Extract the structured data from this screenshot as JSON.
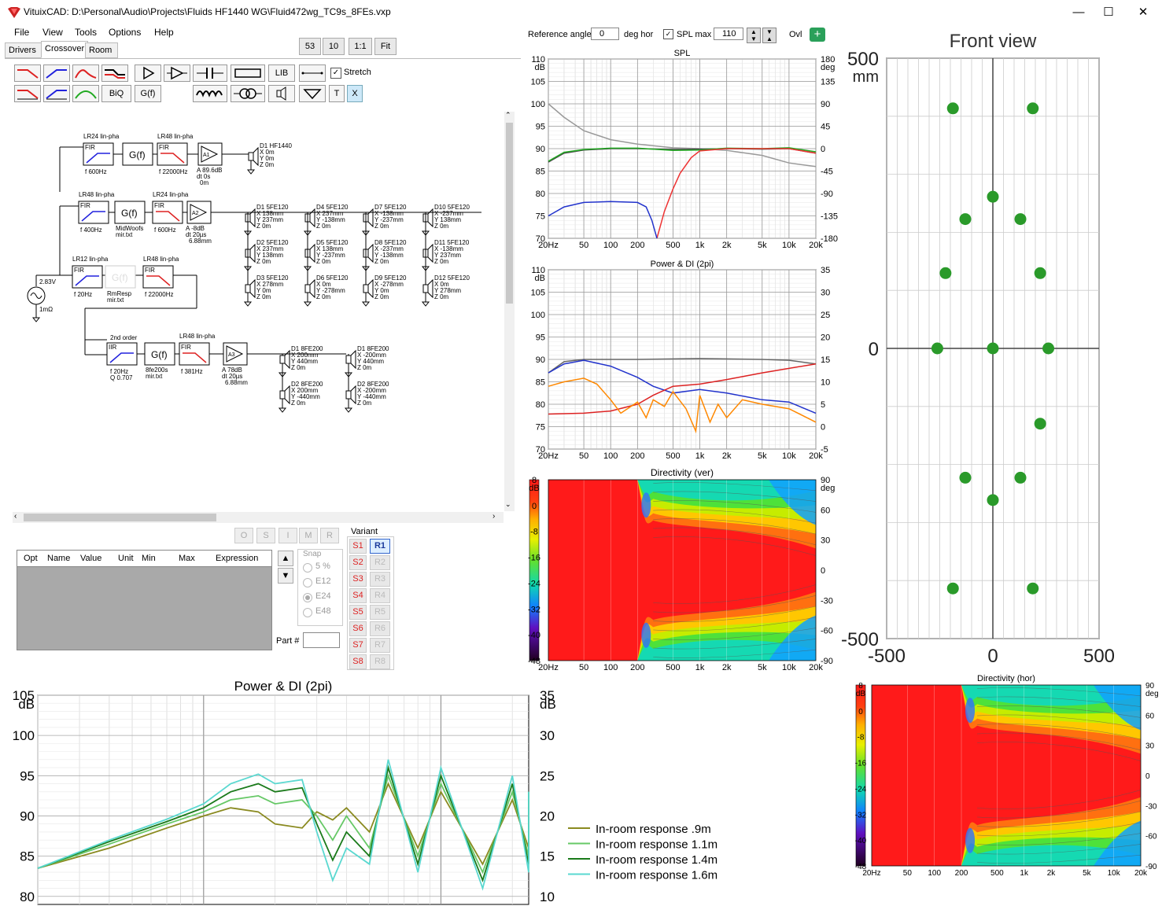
{
  "window": {
    "title": "VituixCAD: D:\\Personal\\Audio\\Projects\\Fluids HF1440 WG\\Fluid472wg_TC9s_8FEs.vxp"
  },
  "menu": [
    "File",
    "View",
    "Tools",
    "Options",
    "Help"
  ],
  "tabs": [
    "Drivers",
    "Crossover",
    "Room"
  ],
  "zoom_buttons": [
    "53",
    "10",
    "1:1",
    "Fit"
  ],
  "toolbar": {
    "lib": "LIB",
    "biq": "BiQ",
    "gf": "G(f)",
    "t": "T",
    "x": "X",
    "stretch": "Stretch"
  },
  "topbar": {
    "ref_label": "Reference angle",
    "ref_value": "0",
    "ref_unit": "deg hor",
    "splmax_label": "SPL max",
    "splmax_value": "110",
    "ovl": "Ovl"
  },
  "schematic": {
    "blocks": [
      {
        "head": "LR24 lin-pha",
        "sub": "f  600Hz"
      },
      {
        "head": "LR48 lin-pha",
        "sub": "f  22000Hz"
      },
      {
        "head": "LR48 lin-pha",
        "sub": "f  400Hz"
      },
      {
        "head": "LR24 lin-pha",
        "sub": "f  600Hz"
      },
      {
        "head": "LR12 lin-pha",
        "sub": "f  20Hz"
      },
      {
        "head": "LR48 lin-pha",
        "sub": "f  22000Hz"
      },
      {
        "head": "2nd order",
        "sub": "f  20Hz"
      },
      {
        "head": "LR48 lin-pha",
        "sub": "f  381Hz"
      }
    ],
    "gf_files": [
      "MidWoofs mir.txt",
      "RmResp mir.txt",
      "8fe200s mir.txt"
    ],
    "amps": [
      {
        "name": "A1",
        "info": [
          "A  89.6dB",
          "dt 0s",
          "0m"
        ]
      },
      {
        "name": "A2",
        "info": [
          "A  -8dB",
          "dt 20µs",
          "6.88mm"
        ]
      },
      {
        "name": "A3",
        "info": [
          "A  78dB",
          "dt 20µs",
          "6.88mm"
        ]
      }
    ],
    "q_label": "Q 0.707",
    "source_v": "2.83V",
    "source_r": "1mΩ",
    "drivers": [
      {
        "n": "D1 HF1440",
        "x": "X 0m",
        "y": "Y 0m",
        "z": "Z 0m"
      },
      {
        "n": "D1 5FE120",
        "x": "X 138mm",
        "y": "Y 237mm",
        "z": "Z 0m"
      },
      {
        "n": "D4 5FE120",
        "x": "X 237mm",
        "y": "Y -138mm",
        "z": "Z 0m"
      },
      {
        "n": "D7 5FE120",
        "x": "X -138mm",
        "y": "Y -237mm",
        "z": "Z 0m"
      },
      {
        "n": "D10 5FE120",
        "x": "X -237mm",
        "y": "Y 138mm",
        "z": "Z 0m"
      },
      {
        "n": "D2 5FE120",
        "x": "X 237mm",
        "y": "Y 138mm",
        "z": "Z 0m"
      },
      {
        "n": "D5 5FE120",
        "x": "X 138mm",
        "y": "Y -237mm",
        "z": "Z 0m"
      },
      {
        "n": "D8 5FE120",
        "x": "X -237mm",
        "y": "Y -138mm",
        "z": "Z 0m"
      },
      {
        "n": "D11 5FE120",
        "x": "X -138mm",
        "y": "Y 237mm",
        "z": "Z 0m"
      },
      {
        "n": "D3 5FE120",
        "x": "X 278mm",
        "y": "Y 0m",
        "z": "Z 0m"
      },
      {
        "n": "D6 5FE120",
        "x": "X 0m",
        "y": "Y -278mm",
        "z": "Z 0m"
      },
      {
        "n": "D9 5FE120",
        "x": "X -278mm",
        "y": "Y 0m",
        "z": "Z 0m"
      },
      {
        "n": "D12 5FE120",
        "x": "X 0m",
        "y": "Y 278mm",
        "z": "Z 0m"
      },
      {
        "n": "D1 8FE200",
        "x": "X 200mm",
        "y": "Y 440mm",
        "z": "Z 0m"
      },
      {
        "n": "D1 8FE200",
        "x": "X -200mm",
        "y": "Y 440mm",
        "z": "Z 0m"
      },
      {
        "n": "D2 8FE200",
        "x": "X 200mm",
        "y": "Y -440mm",
        "z": "Z 0m"
      },
      {
        "n": "D2 8FE200",
        "x": "X -200mm",
        "y": "Y -440mm",
        "z": "Z 0m"
      }
    ],
    "fir": "FIR",
    "iir": "IIR",
    "gf": "G(f)"
  },
  "optimizer": {
    "headers": [
      "Opt",
      "Name",
      "Value",
      "Unit",
      "Min",
      "Max",
      "Expression"
    ],
    "buttons": [
      "O",
      "S",
      "I",
      "M",
      "R"
    ],
    "snap_label": "Snap",
    "snap_options": [
      "5 %",
      "E12",
      "E24",
      "E48"
    ],
    "snap_selected": "E24",
    "part_label": "Part #",
    "variant_label": "Variant",
    "s_buttons": [
      "S1",
      "S2",
      "S3",
      "S4",
      "S5",
      "S6",
      "S7",
      "S8"
    ],
    "r_buttons": [
      "R1",
      "R2",
      "R3",
      "R4",
      "R5",
      "R6",
      "R7",
      "R8"
    ]
  },
  "chart_data": [
    {
      "type": "line",
      "title": "SPL",
      "y_unit": "dB",
      "ylim": [
        70,
        110
      ],
      "yticks": [
        "110",
        "105",
        "100",
        "95",
        "90",
        "85",
        "80",
        "75",
        "70"
      ],
      "y2_unit": "deg",
      "y2ticks": [
        "180",
        "135",
        "90",
        "45",
        "0",
        "-45",
        "-90",
        "-135",
        "-180"
      ],
      "xticks": [
        "20Hz",
        "50",
        "100",
        "200",
        "500",
        "1k",
        "2k",
        "5k",
        "10k",
        "20k"
      ],
      "x_scale": "log",
      "series": [
        {
          "color": "#999999",
          "x": [
            20,
            30,
            50,
            100,
            200,
            500,
            1000,
            2000,
            5000,
            10000,
            20000
          ],
          "y": [
            100,
            97,
            94,
            92,
            91,
            90.2,
            90,
            89.6,
            88.5,
            86.8,
            86
          ]
        },
        {
          "color": "#444444",
          "x": [
            20,
            30,
            50,
            100,
            200,
            500,
            1000,
            2000,
            5000,
            10000,
            20000
          ],
          "y": [
            87,
            89,
            89.7,
            90,
            90,
            89.8,
            89.9,
            90,
            89.9,
            90,
            89
          ]
        },
        {
          "color": "#22aa22",
          "x": [
            20,
            30,
            50,
            100,
            200,
            500,
            1000,
            2000,
            5000,
            10000,
            20000
          ],
          "y": [
            87.2,
            89.2,
            89.8,
            90.1,
            90.1,
            89.6,
            89.7,
            90.1,
            90,
            90.2,
            89.3
          ]
        },
        {
          "color": "#ee3333",
          "x": [
            330,
            400,
            500,
            600,
            800,
            1000,
            2000,
            5000,
            10000,
            20000
          ],
          "y": [
            70,
            76,
            81,
            84.5,
            88,
            89.5,
            90,
            90,
            90,
            89
          ]
        },
        {
          "color": "#2233cc",
          "x": [
            20,
            30,
            50,
            100,
            200,
            250,
            290,
            330
          ],
          "y": [
            75,
            77,
            78,
            78.2,
            78,
            77,
            74,
            70
          ]
        }
      ]
    },
    {
      "type": "line",
      "title": "Power & DI (2pi)",
      "y_unit": "dB",
      "ylim": [
        70,
        110
      ],
      "yticks": [
        "110",
        "105",
        "100",
        "95",
        "90",
        "85",
        "80",
        "75",
        "70"
      ],
      "y2ticks": [
        "35",
        "30",
        "25",
        "20",
        "15",
        "10",
        "5",
        "0",
        "-5"
      ],
      "y2lim": [
        -5,
        35
      ],
      "xticks": [
        "20Hz",
        "50",
        "100",
        "200",
        "500",
        "1k",
        "2k",
        "5k",
        "10k",
        "20k"
      ],
      "x_scale": "log",
      "series": [
        {
          "color": "#666666",
          "x": [
            20,
            30,
            50,
            100,
            200,
            500,
            1000,
            2000,
            5000,
            10000,
            20000
          ],
          "y": [
            87,
            89.5,
            90,
            90,
            90,
            90.1,
            90.2,
            90.1,
            90,
            89.8,
            89
          ]
        },
        {
          "color": "#2233cc",
          "x": [
            20,
            30,
            50,
            100,
            200,
            300,
            500,
            1000,
            2000,
            5000,
            10000,
            20000
          ],
          "y": [
            87,
            89,
            89.8,
            88.5,
            86,
            84,
            82.5,
            83.3,
            82.5,
            81,
            80.5,
            78
          ]
        },
        {
          "color": "#dd2222",
          "x": [
            20,
            50,
            100,
            200,
            300,
            500,
            1000,
            2000,
            5000,
            10000,
            20000
          ],
          "y": [
            77.8,
            78,
            78.5,
            80,
            82,
            84,
            84.5,
            85.5,
            87,
            88,
            89
          ]
        },
        {
          "color": "#ff8800",
          "x": [
            20,
            30,
            50,
            70,
            100,
            130,
            200,
            250,
            300,
            400,
            500,
            700,
            900,
            1000,
            1300,
            1600,
            2000,
            3000,
            5000,
            10000,
            20000
          ],
          "y": [
            84,
            85,
            85.8,
            84.5,
            81,
            78,
            80.5,
            77,
            81,
            79.5,
            82.8,
            79,
            74,
            82,
            76,
            80,
            77,
            81,
            80,
            79,
            76
          ]
        }
      ]
    },
    {
      "type": "heatmap",
      "title": "Directivity (ver)",
      "colorbar_ticks": [
        "8",
        "0",
        "-8",
        "-16",
        "-24",
        "-32",
        "-40",
        "-48"
      ],
      "colorbar_unit": "dB",
      "angle_ticks": [
        "90",
        "60",
        "30",
        "0",
        "-30",
        "-60",
        "-90"
      ],
      "angle_unit": "deg",
      "xticks": [
        "20Hz",
        "50",
        "100",
        "200",
        "500",
        "1k",
        "2k",
        "5k",
        "10k",
        "20k"
      ]
    },
    {
      "type": "scatter",
      "title": "Front view",
      "y_unit": "mm",
      "xlim": [
        -500,
        500
      ],
      "ylim": [
        -500,
        500
      ],
      "xticks": [
        "-500",
        "0",
        "500"
      ],
      "yticks": [
        "500",
        "0",
        "-500"
      ],
      "points": [
        {
          "x": -200,
          "y": 440
        },
        {
          "x": 200,
          "y": 440
        },
        {
          "x": 0,
          "y": 278
        },
        {
          "x": -138,
          "y": 237
        },
        {
          "x": 138,
          "y": 237
        },
        {
          "x": -237,
          "y": 138
        },
        {
          "x": 237,
          "y": 138
        },
        {
          "x": -278,
          "y": 0
        },
        {
          "x": 0,
          "y": 0
        },
        {
          "x": 278,
          "y": 0
        },
        {
          "x": 237,
          "y": -138
        },
        {
          "x": -138,
          "y": -237
        },
        {
          "x": 138,
          "y": -237
        },
        {
          "x": 0,
          "y": -278
        },
        {
          "x": -200,
          "y": -440
        },
        {
          "x": 200,
          "y": -440
        }
      ]
    },
    {
      "type": "line",
      "title": "Power & DI (2pi)",
      "y_unit": "dB",
      "ylim": [
        79,
        105
      ],
      "yticks": [
        "105",
        "100",
        "95",
        "90",
        "85",
        "80"
      ],
      "y2_unit": "dB",
      "y2ticks": [
        "35",
        "30",
        "25",
        "20",
        "15",
        "10"
      ],
      "x_scale": "log",
      "legend": "right",
      "series": [
        {
          "name": "In-room response .9m",
          "color": "#8a8a20",
          "x": [
            20,
            40,
            70,
            100,
            130,
            170,
            200,
            260,
            300,
            350,
            400,
            500,
            600,
            800,
            1000,
            1500,
            2000,
            3000,
            5000,
            8000,
            14000
          ],
          "y": [
            83.5,
            86,
            88.5,
            90,
            91,
            90.5,
            89,
            88.5,
            90.5,
            89.5,
            91,
            88,
            94,
            86,
            93,
            84,
            92,
            86,
            92,
            88,
            90
          ]
        },
        {
          "name": "In-room response 1.1m",
          "color": "#66c866",
          "x": [
            20,
            40,
            70,
            100,
            130,
            170,
            200,
            260,
            300,
            350,
            400,
            500,
            600,
            800,
            1000,
            1500,
            2000,
            3000,
            5000,
            8000,
            14000
          ],
          "y": [
            83.5,
            86.5,
            89,
            90.5,
            92,
            92.5,
            91.5,
            92,
            90,
            87,
            90,
            86,
            95,
            85,
            94,
            83,
            93,
            85,
            92,
            87,
            90
          ]
        },
        {
          "name": "In-room response 1.4m",
          "color": "#1a7a1a",
          "x": [
            20,
            40,
            70,
            100,
            130,
            170,
            200,
            260,
            300,
            350,
            400,
            500,
            600,
            800,
            1000,
            1500,
            2000,
            3000,
            5000,
            8000,
            14000
          ],
          "y": [
            83.5,
            86.8,
            89.3,
            91,
            93,
            94,
            93,
            93.5,
            89,
            84.5,
            88,
            85,
            96,
            84,
            95,
            82,
            94,
            84,
            93,
            86,
            90
          ]
        },
        {
          "name": "In-room response 1.6m",
          "color": "#5ad8d0",
          "x": [
            20,
            40,
            70,
            100,
            130,
            170,
            200,
            260,
            300,
            350,
            400,
            500,
            600,
            800,
            1000,
            1500,
            2000,
            3000,
            5000,
            8000,
            14000
          ],
          "y": [
            83.5,
            87,
            89.6,
            91.5,
            94,
            95.2,
            94,
            94.5,
            88,
            82,
            86,
            84,
            97,
            83,
            96,
            81,
            95,
            83,
            93,
            85,
            90
          ]
        }
      ]
    },
    {
      "type": "heatmap",
      "title": "Directivity (hor)",
      "colorbar_ticks": [
        "8",
        "0",
        "-8",
        "-16",
        "-24",
        "-32",
        "-40",
        "-48"
      ],
      "colorbar_unit": "dB",
      "angle_ticks": [
        "90",
        "60",
        "30",
        "0",
        "-30",
        "-60",
        "-90"
      ],
      "angle_unit": "deg",
      "xticks": [
        "20Hz",
        "50",
        "100",
        "200",
        "500",
        "1k",
        "2k",
        "5k",
        "10k",
        "20k"
      ]
    }
  ]
}
